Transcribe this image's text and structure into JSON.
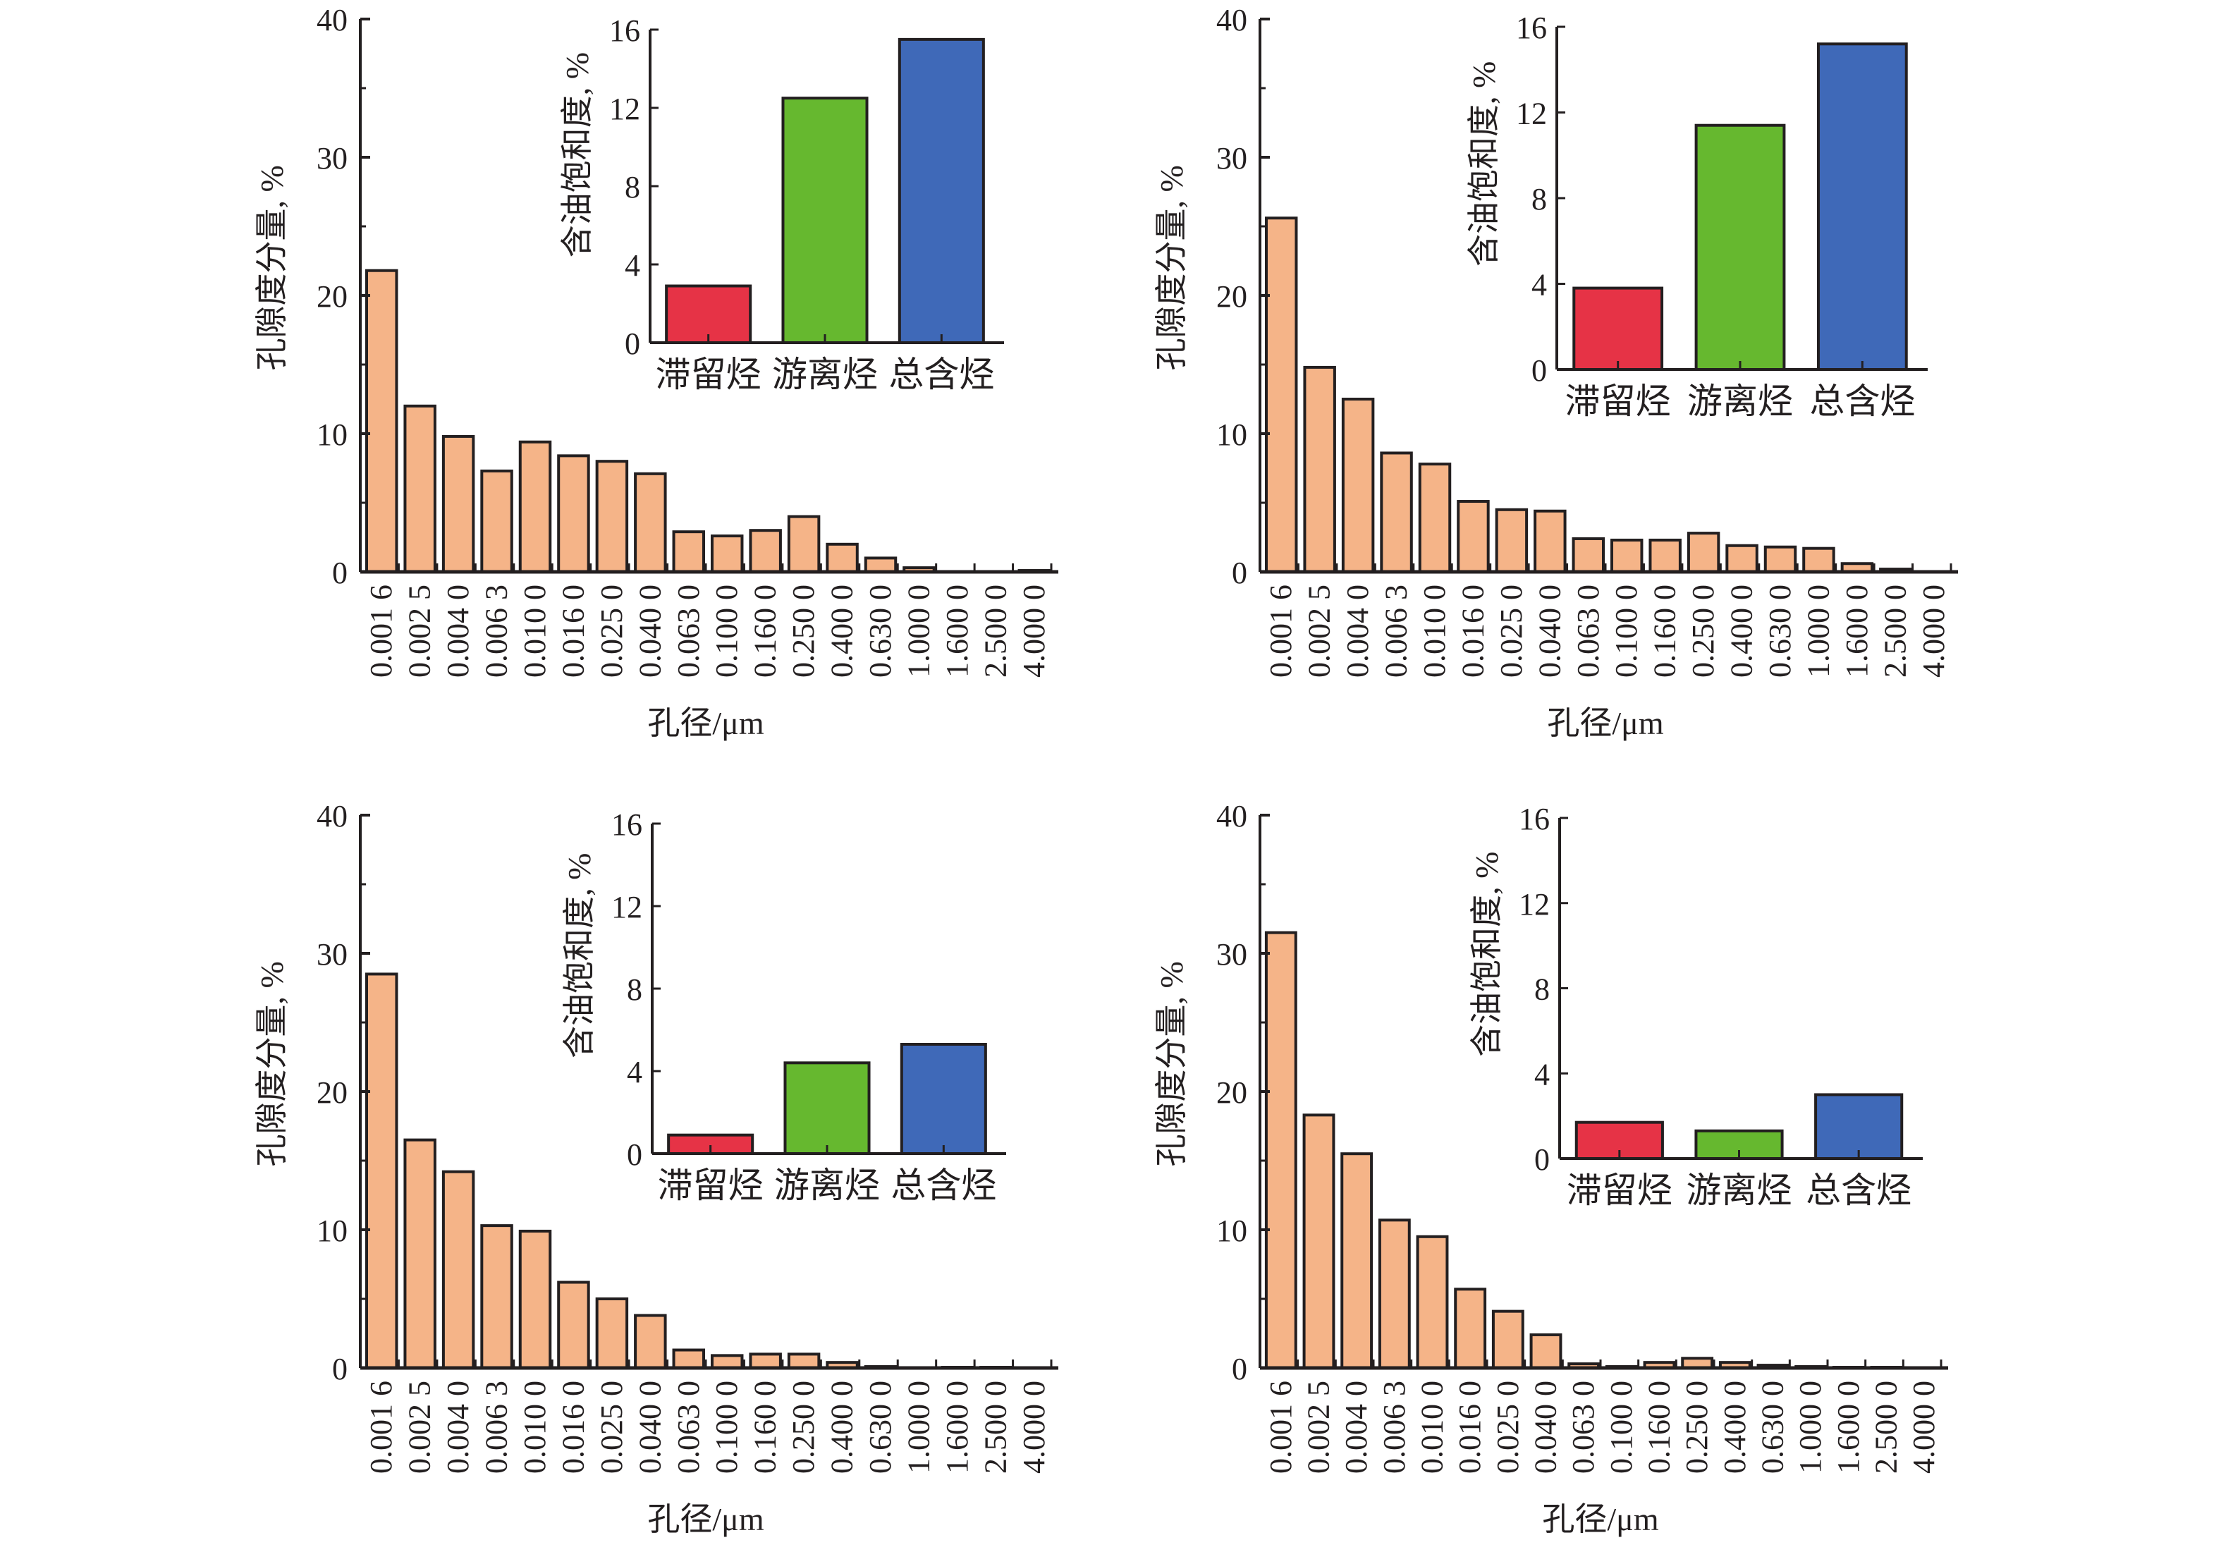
{
  "chart_data": [
    {
      "type": "bar",
      "panel": "top-left",
      "xlabel": "孔径/μm",
      "ylabel": "孔隙度分量, %",
      "ylim": [
        0,
        40
      ],
      "yticks": [
        "0",
        "10",
        "20",
        "30",
        "40"
      ],
      "categories": [
        "0.001 6",
        "0.002 5",
        "0.004 0",
        "0.006 3",
        "0.010 0",
        "0.016 0",
        "0.025 0",
        "0.040 0",
        "0.063 0",
        "0.100 0",
        "0.160 0",
        "0.250 0",
        "0.400 0",
        "0.630 0",
        "1.000 0",
        "1.600 0",
        "2.500 0",
        "4.000 0"
      ],
      "values": [
        21.8,
        12.0,
        9.8,
        7.3,
        9.4,
        8.4,
        8.0,
        7.1,
        2.9,
        2.6,
        3.0,
        4.0,
        2.0,
        1.0,
        0.3,
        0,
        0,
        0.1
      ],
      "bar_color": "#f5b488",
      "inset": {
        "type": "bar",
        "ylabel": "含油饱和度, %",
        "ylim": [
          0,
          16
        ],
        "yticks": [
          "0",
          "4",
          "8",
          "12",
          "16"
        ],
        "categories": [
          "滞留烃",
          "游离烃",
          "总含烃"
        ],
        "values": [
          2.9,
          12.5,
          15.5
        ],
        "colors": [
          "#e63346",
          "#66b82f",
          "#3f69b8"
        ]
      }
    },
    {
      "type": "bar",
      "panel": "top-right",
      "xlabel": "孔径/μm",
      "ylabel": "孔隙度分量, %",
      "ylim": [
        0,
        40
      ],
      "yticks": [
        "0",
        "10",
        "20",
        "30",
        "40"
      ],
      "categories": [
        "0.001 6",
        "0.002 5",
        "0.004 0",
        "0.006 3",
        "0.010 0",
        "0.016 0",
        "0.025 0",
        "0.040 0",
        "0.063 0",
        "0.100 0",
        "0.160 0",
        "0.250 0",
        "0.400 0",
        "0.630 0",
        "1.000 0",
        "1.600 0",
        "2.500 0",
        "4.000 0"
      ],
      "values": [
        25.6,
        14.8,
        12.5,
        8.6,
        7.8,
        5.1,
        4.5,
        4.4,
        2.4,
        2.3,
        2.3,
        2.8,
        1.9,
        1.8,
        1.7,
        0.6,
        0.2,
        0
      ],
      "bar_color": "#f5b488",
      "inset": {
        "type": "bar",
        "ylabel": "含油饱和度, %",
        "ylim": [
          0,
          16
        ],
        "yticks": [
          "0",
          "4",
          "8",
          "12",
          "16"
        ],
        "categories": [
          "滞留烃",
          "游离烃",
          "总含烃"
        ],
        "values": [
          3.8,
          11.4,
          15.2
        ],
        "colors": [
          "#e63346",
          "#66b82f",
          "#3f69b8"
        ]
      }
    },
    {
      "type": "bar",
      "panel": "bottom-left",
      "xlabel": "孔径/μm",
      "ylabel": "孔隙度分量, %",
      "ylim": [
        0,
        40
      ],
      "yticks": [
        "0",
        "10",
        "20",
        "30",
        "40"
      ],
      "categories": [
        "0.001 6",
        "0.002 5",
        "0.004 0",
        "0.006 3",
        "0.010 0",
        "0.016 0",
        "0.025 0",
        "0.040 0",
        "0.063 0",
        "0.100 0",
        "0.160 0",
        "0.250 0",
        "0.400 0",
        "0.630 0",
        "1.000 0",
        "1.600 0",
        "2.500 0",
        "4.000 0"
      ],
      "values": [
        28.5,
        16.5,
        14.2,
        10.3,
        9.9,
        6.2,
        5.0,
        3.8,
        1.3,
        0.9,
        1.0,
        1.0,
        0.4,
        0.1,
        0,
        0.05,
        0.05,
        0
      ],
      "bar_color": "#f5b488",
      "inset": {
        "type": "bar",
        "ylabel": "含油饱和度, %",
        "ylim": [
          0,
          16
        ],
        "yticks": [
          "0",
          "4",
          "8",
          "12",
          "16"
        ],
        "categories": [
          "滞留烃",
          "游离烃",
          "总含烃"
        ],
        "values": [
          0.9,
          4.4,
          5.3
        ],
        "colors": [
          "#e63346",
          "#66b82f",
          "#3f69b8"
        ]
      }
    },
    {
      "type": "bar",
      "panel": "bottom-right",
      "xlabel": "孔径/μm",
      "ylabel": "孔隙度分量, %",
      "ylim": [
        0,
        40
      ],
      "yticks": [
        "0",
        "10",
        "20",
        "30",
        "40"
      ],
      "categories": [
        "0.001 6",
        "0.002 5",
        "0.004 0",
        "0.006 3",
        "0.010 0",
        "0.016 0",
        "0.025 0",
        "0.040 0",
        "0.063 0",
        "0.100 0",
        "0.160 0",
        "0.250 0",
        "0.400 0",
        "0.630 0",
        "1.000 0",
        "1.600 0",
        "2.500 0",
        "4.000 0"
      ],
      "values": [
        31.5,
        18.3,
        15.5,
        10.7,
        9.5,
        5.7,
        4.1,
        2.4,
        0.3,
        0.1,
        0.4,
        0.7,
        0.4,
        0.2,
        0.1,
        0.05,
        0.05,
        0
      ],
      "bar_color": "#f5b488",
      "inset": {
        "type": "bar",
        "ylabel": "含油饱和度, %",
        "ylim": [
          0,
          16
        ],
        "yticks": [
          "0",
          "4",
          "8",
          "12",
          "16"
        ],
        "categories": [
          "滞留烃",
          "游离烃",
          "总含烃"
        ],
        "values": [
          1.7,
          1.3,
          3.0
        ],
        "colors": [
          "#e63346",
          "#66b82f",
          "#3f69b8"
        ]
      }
    }
  ]
}
